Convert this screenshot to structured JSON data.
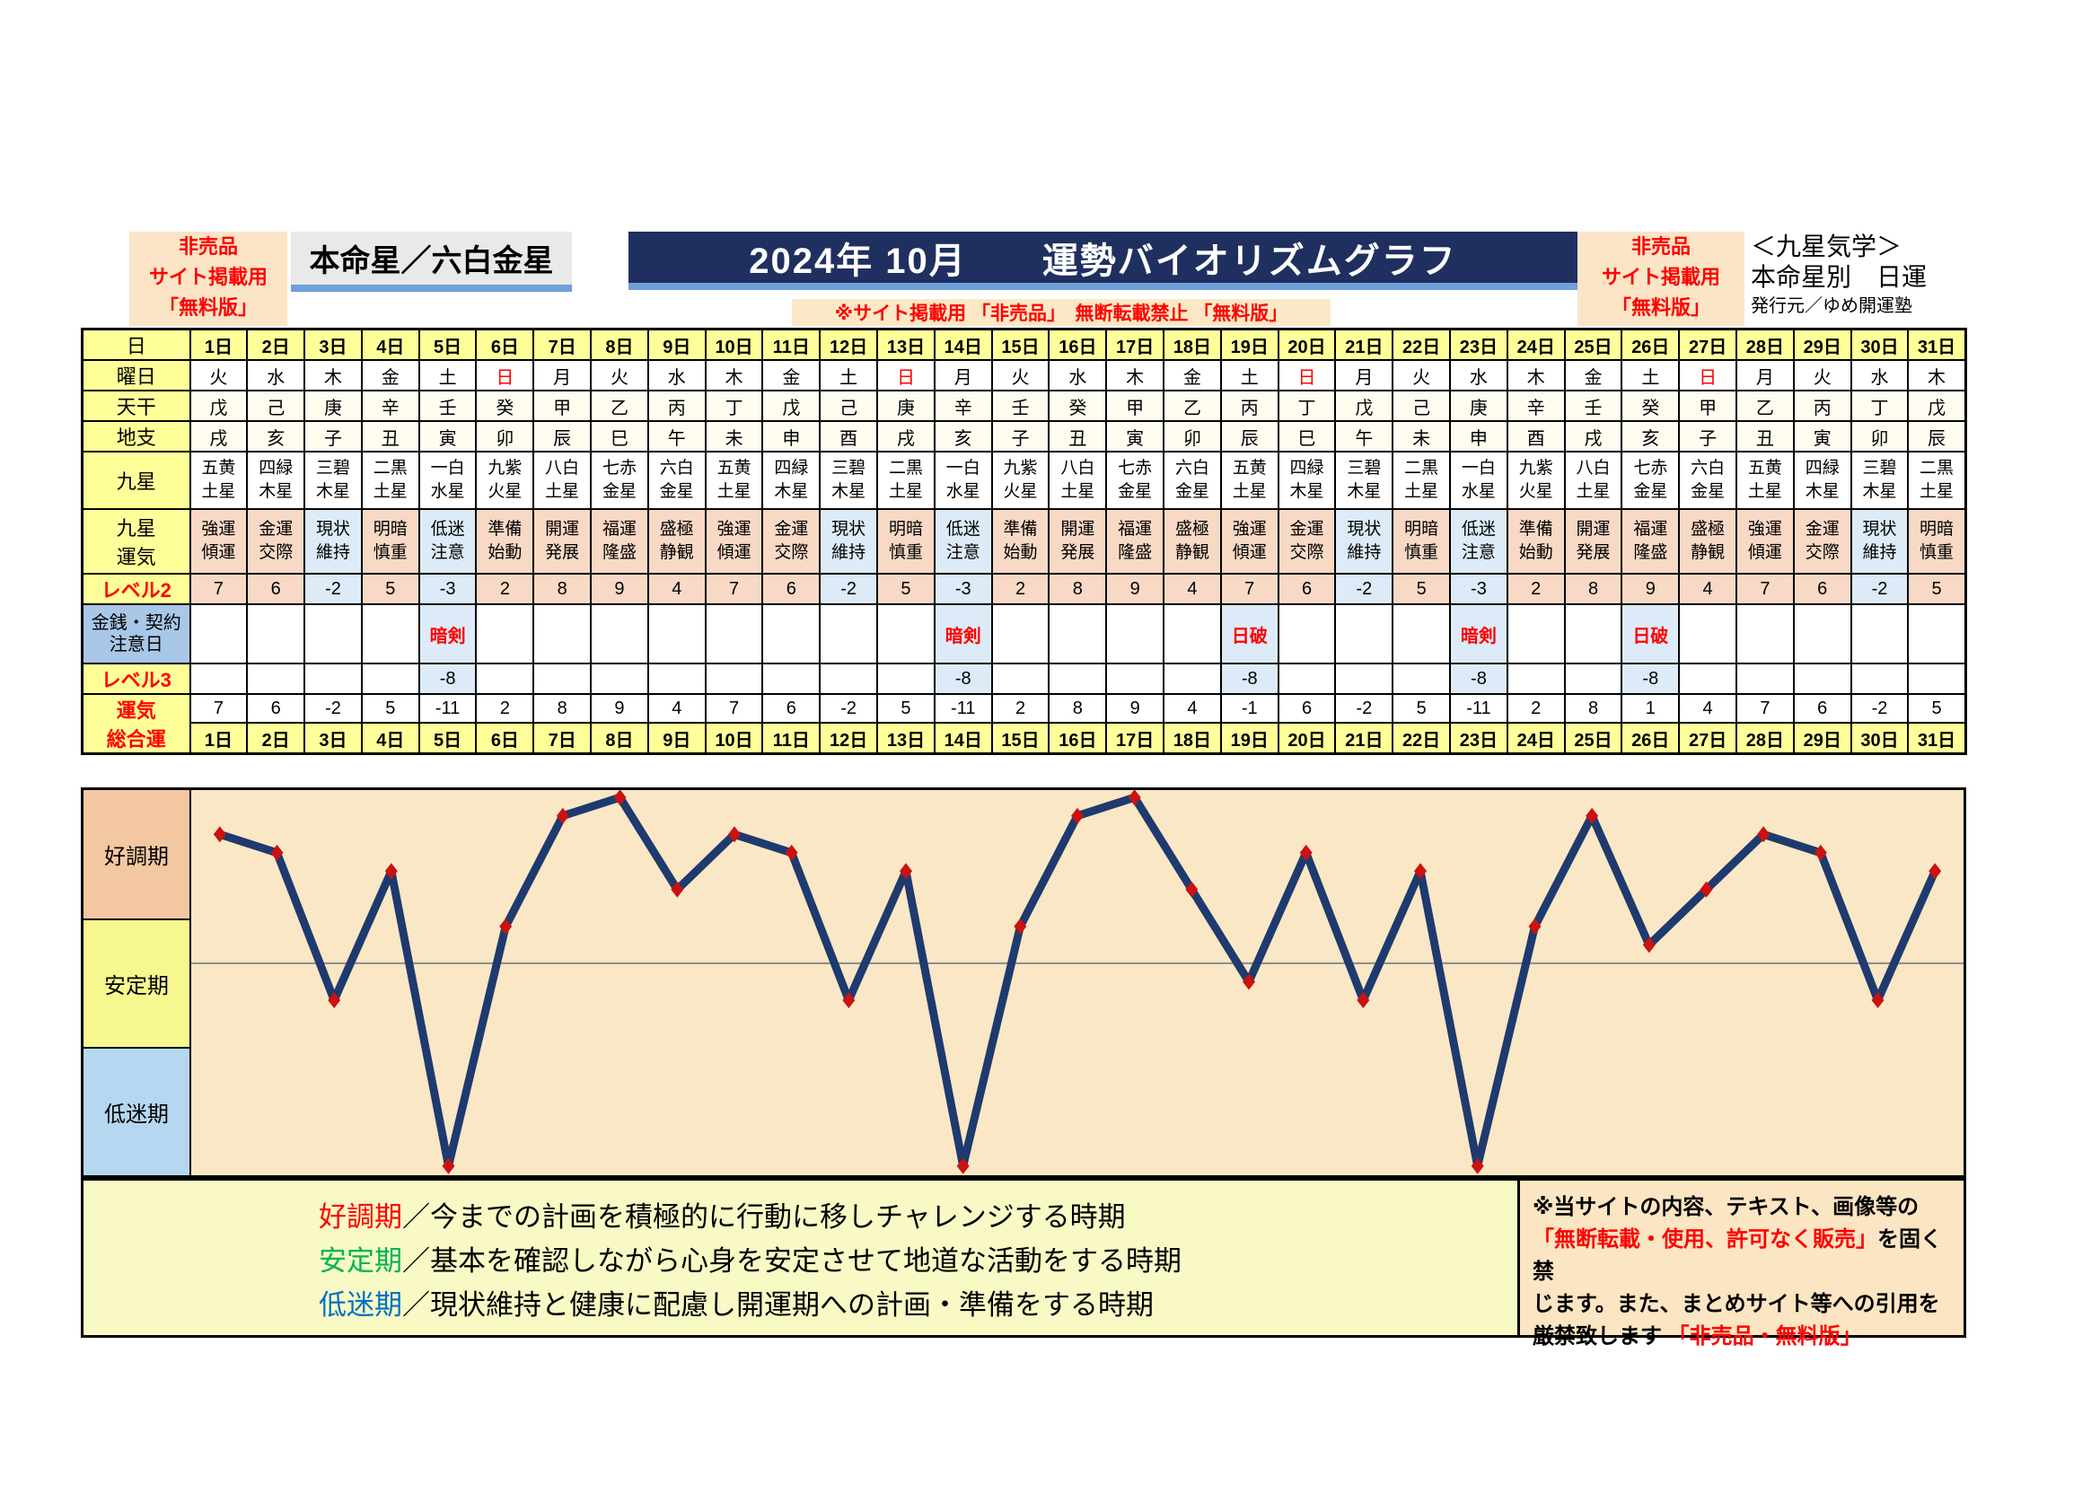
{
  "header": {
    "free_label": {
      "line1": "非売品",
      "line2": "サイト掲載用",
      "line3": "「無料版」"
    },
    "honmeisei": "本命星／六白金星",
    "title": "2024年 10月　　運勢バイオリズムグラフ",
    "subtitle": "※サイト掲載用 「非売品」　無断転載禁止 「無料版」",
    "school": "＜九星気学＞",
    "category": "本命星別　日運",
    "publisher": "発行元／ゆめ開運塾"
  },
  "table": {
    "row_labels": {
      "day": "日",
      "weekday": "曜日",
      "tenkan": "天干",
      "chishi": "地支",
      "kyusei": "九星",
      "kyusei_unki": [
        "九星",
        "運気"
      ],
      "level2": "レベル2",
      "caution": [
        "金銭・契約",
        "注意日"
      ],
      "level3": "レベル3",
      "total": [
        "運気",
        "総合運"
      ]
    },
    "days": [
      "1日",
      "2日",
      "3日",
      "4日",
      "5日",
      "6日",
      "7日",
      "8日",
      "9日",
      "10日",
      "11日",
      "12日",
      "13日",
      "14日",
      "15日",
      "16日",
      "17日",
      "18日",
      "19日",
      "20日",
      "21日",
      "22日",
      "23日",
      "24日",
      "25日",
      "26日",
      "27日",
      "28日",
      "29日",
      "30日",
      "31日"
    ],
    "weekdays": [
      "火",
      "水",
      "木",
      "金",
      "土",
      "日",
      "月",
      "火",
      "水",
      "木",
      "金",
      "土",
      "日",
      "月",
      "火",
      "水",
      "木",
      "金",
      "土",
      "日",
      "月",
      "火",
      "水",
      "木",
      "金",
      "土",
      "日",
      "月",
      "火",
      "水",
      "木"
    ],
    "tenkan": [
      "戊",
      "己",
      "庚",
      "辛",
      "壬",
      "癸",
      "甲",
      "乙",
      "丙",
      "丁",
      "戊",
      "己",
      "庚",
      "辛",
      "壬",
      "癸",
      "甲",
      "乙",
      "丙",
      "丁",
      "戊",
      "己",
      "庚",
      "辛",
      "壬",
      "癸",
      "甲",
      "乙",
      "丙",
      "丁",
      "戊"
    ],
    "chishi": [
      "戌",
      "亥",
      "子",
      "丑",
      "寅",
      "卯",
      "辰",
      "巳",
      "午",
      "未",
      "申",
      "酉",
      "戌",
      "亥",
      "子",
      "丑",
      "寅",
      "卯",
      "辰",
      "巳",
      "午",
      "未",
      "申",
      "酉",
      "戌",
      "亥",
      "子",
      "丑",
      "寅",
      "卯",
      "辰"
    ],
    "kyusei": [
      [
        "五黄",
        "土星"
      ],
      [
        "四緑",
        "木星"
      ],
      [
        "三碧",
        "木星"
      ],
      [
        "二黒",
        "土星"
      ],
      [
        "一白",
        "水星"
      ],
      [
        "九紫",
        "火星"
      ],
      [
        "八白",
        "土星"
      ],
      [
        "七赤",
        "金星"
      ],
      [
        "六白",
        "金星"
      ],
      [
        "五黄",
        "土星"
      ],
      [
        "四緑",
        "木星"
      ],
      [
        "三碧",
        "木星"
      ],
      [
        "二黒",
        "土星"
      ],
      [
        "一白",
        "水星"
      ],
      [
        "九紫",
        "火星"
      ],
      [
        "八白",
        "土星"
      ],
      [
        "七赤",
        "金星"
      ],
      [
        "六白",
        "金星"
      ],
      [
        "五黄",
        "土星"
      ],
      [
        "四緑",
        "木星"
      ],
      [
        "三碧",
        "木星"
      ],
      [
        "二黒",
        "土星"
      ],
      [
        "一白",
        "水星"
      ],
      [
        "九紫",
        "火星"
      ],
      [
        "八白",
        "土星"
      ],
      [
        "七赤",
        "金星"
      ],
      [
        "六白",
        "金星"
      ],
      [
        "五黄",
        "土星"
      ],
      [
        "四緑",
        "木星"
      ],
      [
        "三碧",
        "木星"
      ],
      [
        "二黒",
        "土星"
      ]
    ],
    "unki": [
      [
        "強運",
        "傾運"
      ],
      [
        "金運",
        "交際"
      ],
      [
        "現状",
        "維持"
      ],
      [
        "明暗",
        "慎重"
      ],
      [
        "低迷",
        "注意"
      ],
      [
        "準備",
        "始動"
      ],
      [
        "開運",
        "発展"
      ],
      [
        "福運",
        "隆盛"
      ],
      [
        "盛極",
        "静観"
      ],
      [
        "強運",
        "傾運"
      ],
      [
        "金運",
        "交際"
      ],
      [
        "現状",
        "維持"
      ],
      [
        "明暗",
        "慎重"
      ],
      [
        "低迷",
        "注意"
      ],
      [
        "準備",
        "始動"
      ],
      [
        "開運",
        "発展"
      ],
      [
        "福運",
        "隆盛"
      ],
      [
        "盛極",
        "静観"
      ],
      [
        "強運",
        "傾運"
      ],
      [
        "金運",
        "交際"
      ],
      [
        "現状",
        "維持"
      ],
      [
        "明暗",
        "慎重"
      ],
      [
        "低迷",
        "注意"
      ],
      [
        "準備",
        "始動"
      ],
      [
        "開運",
        "発展"
      ],
      [
        "福運",
        "隆盛"
      ],
      [
        "盛極",
        "静観"
      ],
      [
        "強運",
        "傾運"
      ],
      [
        "金運",
        "交際"
      ],
      [
        "現状",
        "維持"
      ],
      [
        "明暗",
        "慎重"
      ]
    ],
    "level2": [
      7,
      6,
      -2,
      5,
      -3,
      2,
      8,
      9,
      4,
      7,
      6,
      -2,
      5,
      -3,
      2,
      8,
      9,
      4,
      7,
      6,
      -2,
      5,
      -3,
      2,
      8,
      9,
      4,
      7,
      6,
      -2,
      5
    ],
    "caution": [
      "",
      "",
      "",
      "",
      "暗剣",
      "",
      "",
      "",
      "",
      "",
      "",
      "",
      "",
      "暗剣",
      "",
      "",
      "",
      "",
      "日破",
      "",
      "",
      "",
      "暗剣",
      "",
      "",
      "日破",
      "",
      "",
      "",
      "",
      ""
    ],
    "level3": [
      "",
      "",
      "",
      "",
      "-8",
      "",
      "",
      "",
      "",
      "",
      "",
      "",
      "",
      "-8",
      "",
      "",
      "",
      "",
      "-8",
      "",
      "",
      "",
      "-8",
      "",
      "",
      "-8",
      "",
      "",
      "",
      "",
      ""
    ],
    "total": [
      7,
      6,
      -2,
      5,
      -11,
      2,
      8,
      9,
      4,
      7,
      6,
      -2,
      5,
      -11,
      2,
      8,
      9,
      4,
      -1,
      6,
      -2,
      5,
      -11,
      2,
      8,
      1,
      4,
      7,
      6,
      -2,
      5
    ]
  },
  "chart": {
    "zones": [
      {
        "label": "好調期"
      },
      {
        "label": "安定期"
      },
      {
        "label": "低迷期"
      }
    ],
    "line_color": "#1e3a6e",
    "marker_color": "#cc1111",
    "background": "#fae7c5",
    "zone_colors": {
      "good": "#f3c7a1",
      "stable": "#f7f790",
      "low": "#b5d7ef"
    }
  },
  "chart_data": {
    "type": "line",
    "title": "2024年 10月 運勢バイオリズムグラフ（六白金星）",
    "x": [
      "1日",
      "2日",
      "3日",
      "4日",
      "5日",
      "6日",
      "7日",
      "8日",
      "9日",
      "10日",
      "11日",
      "12日",
      "13日",
      "14日",
      "15日",
      "16日",
      "17日",
      "18日",
      "19日",
      "20日",
      "21日",
      "22日",
      "23日",
      "24日",
      "25日",
      "26日",
      "27日",
      "28日",
      "29日",
      "30日",
      "31日"
    ],
    "values": [
      7,
      6,
      -2,
      5,
      -11,
      2,
      8,
      9,
      4,
      7,
      6,
      -2,
      5,
      -11,
      2,
      8,
      9,
      4,
      -1,
      6,
      -2,
      5,
      -11,
      2,
      8,
      1,
      4,
      7,
      6,
      -2,
      5
    ],
    "xlabel": "日",
    "ylabel": "運気総合運",
    "ylim": [
      -11.5,
      9.4
    ],
    "grid": "zero-line-only",
    "legend": "none",
    "marker": "diamond"
  },
  "footer": {
    "legend": [
      {
        "name": "好調期",
        "desc": "／今までの計画を積極的に行動に移しチャレンジする時期"
      },
      {
        "name": "安定期",
        "desc": "／基本を確認しながら心身を安定させて地道な活動をする時期"
      },
      {
        "name": "低迷期",
        "desc": "／現状維持と健康に配慮し開運期への計画・準備をする時期"
      }
    ],
    "notice": {
      "l1": "※当サイトの内容、テキスト、画像等の",
      "l2_red": "「無断転載・使用、許可なく販売」",
      "l2_black": "を固く禁",
      "l3": "じます。また、まとめサイト等への引用を",
      "l4_black": "厳禁致します ",
      "l4_red": "「非売品・無料版」"
    }
  }
}
